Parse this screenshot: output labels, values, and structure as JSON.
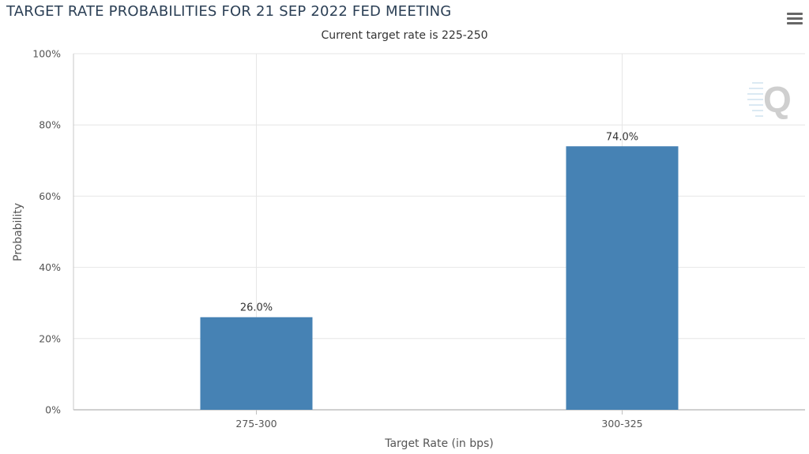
{
  "chart_data": {
    "type": "bar",
    "title": "TARGET RATE PROBABILITIES FOR 21 SEP 2022 FED MEETING",
    "subtitle": "Current target rate is 225-250",
    "categories": [
      "275-300",
      "300-325"
    ],
    "values": [
      26.0,
      74.0
    ],
    "data_labels": [
      "26.0%",
      "74.0%"
    ],
    "xlabel": "Target Rate (in bps)",
    "ylabel": "Probability",
    "ylim": [
      0,
      100
    ],
    "yticks": [
      "0%",
      "20%",
      "40%",
      "60%",
      "80%",
      "100%"
    ],
    "grid": true,
    "bar_color": "#4682b4"
  },
  "toolbar": {
    "menu_icon": "hamburger-menu-icon"
  },
  "watermark": {
    "icon": "q-logo-icon",
    "letter": "Q"
  }
}
